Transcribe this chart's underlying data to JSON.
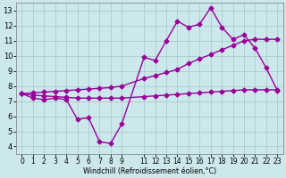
{
  "xlabel": "Windchill (Refroidissement éolien,°C)",
  "background_color": "#cce8ec",
  "grid_color": "#aacccc",
  "line_color": "#990099",
  "xlim": [
    -0.5,
    23.5
  ],
  "ylim": [
    3.5,
    13.5
  ],
  "xticks": [
    0,
    1,
    2,
    3,
    4,
    5,
    6,
    7,
    8,
    9,
    11,
    12,
    13,
    14,
    15,
    16,
    17,
    18,
    19,
    20,
    21,
    22,
    23
  ],
  "yticks": [
    4,
    5,
    6,
    7,
    8,
    9,
    10,
    11,
    12,
    13
  ],
  "curve1_x": [
    0,
    1,
    2,
    3,
    4,
    5,
    6,
    7,
    8,
    9,
    11,
    12,
    13,
    14,
    15,
    16,
    17,
    18,
    19,
    20,
    21,
    22,
    23
  ],
  "curve1_y": [
    7.5,
    7.2,
    7.1,
    7.2,
    7.1,
    5.8,
    5.9,
    4.3,
    4.2,
    5.5,
    9.9,
    9.7,
    11.0,
    12.3,
    11.9,
    12.1,
    13.2,
    11.9,
    11.1,
    11.4,
    10.5,
    9.2,
    7.7
  ],
  "curve2_x": [
    0,
    1,
    2,
    3,
    4,
    5,
    6,
    7,
    8,
    9,
    11,
    12,
    13,
    14,
    15,
    16,
    17,
    18,
    19,
    20,
    21,
    22,
    23
  ],
  "curve2_y": [
    7.5,
    7.55,
    7.6,
    7.65,
    7.7,
    7.75,
    7.8,
    7.85,
    7.9,
    8.0,
    8.5,
    8.7,
    8.9,
    9.1,
    9.5,
    9.8,
    10.1,
    10.4,
    10.7,
    11.0,
    11.1,
    11.1,
    11.1
  ],
  "curve3_x": [
    0,
    1,
    2,
    3,
    4,
    5,
    6,
    7,
    8,
    9,
    11,
    12,
    13,
    14,
    15,
    16,
    17,
    18,
    19,
    20,
    21,
    22,
    23
  ],
  "curve3_y": [
    7.5,
    7.4,
    7.35,
    7.3,
    7.25,
    7.2,
    7.2,
    7.2,
    7.2,
    7.2,
    7.3,
    7.35,
    7.4,
    7.45,
    7.5,
    7.55,
    7.6,
    7.65,
    7.7,
    7.75,
    7.75,
    7.75,
    7.75
  ],
  "marker": "D",
  "marker_size": 2.5,
  "line_width": 1.0
}
